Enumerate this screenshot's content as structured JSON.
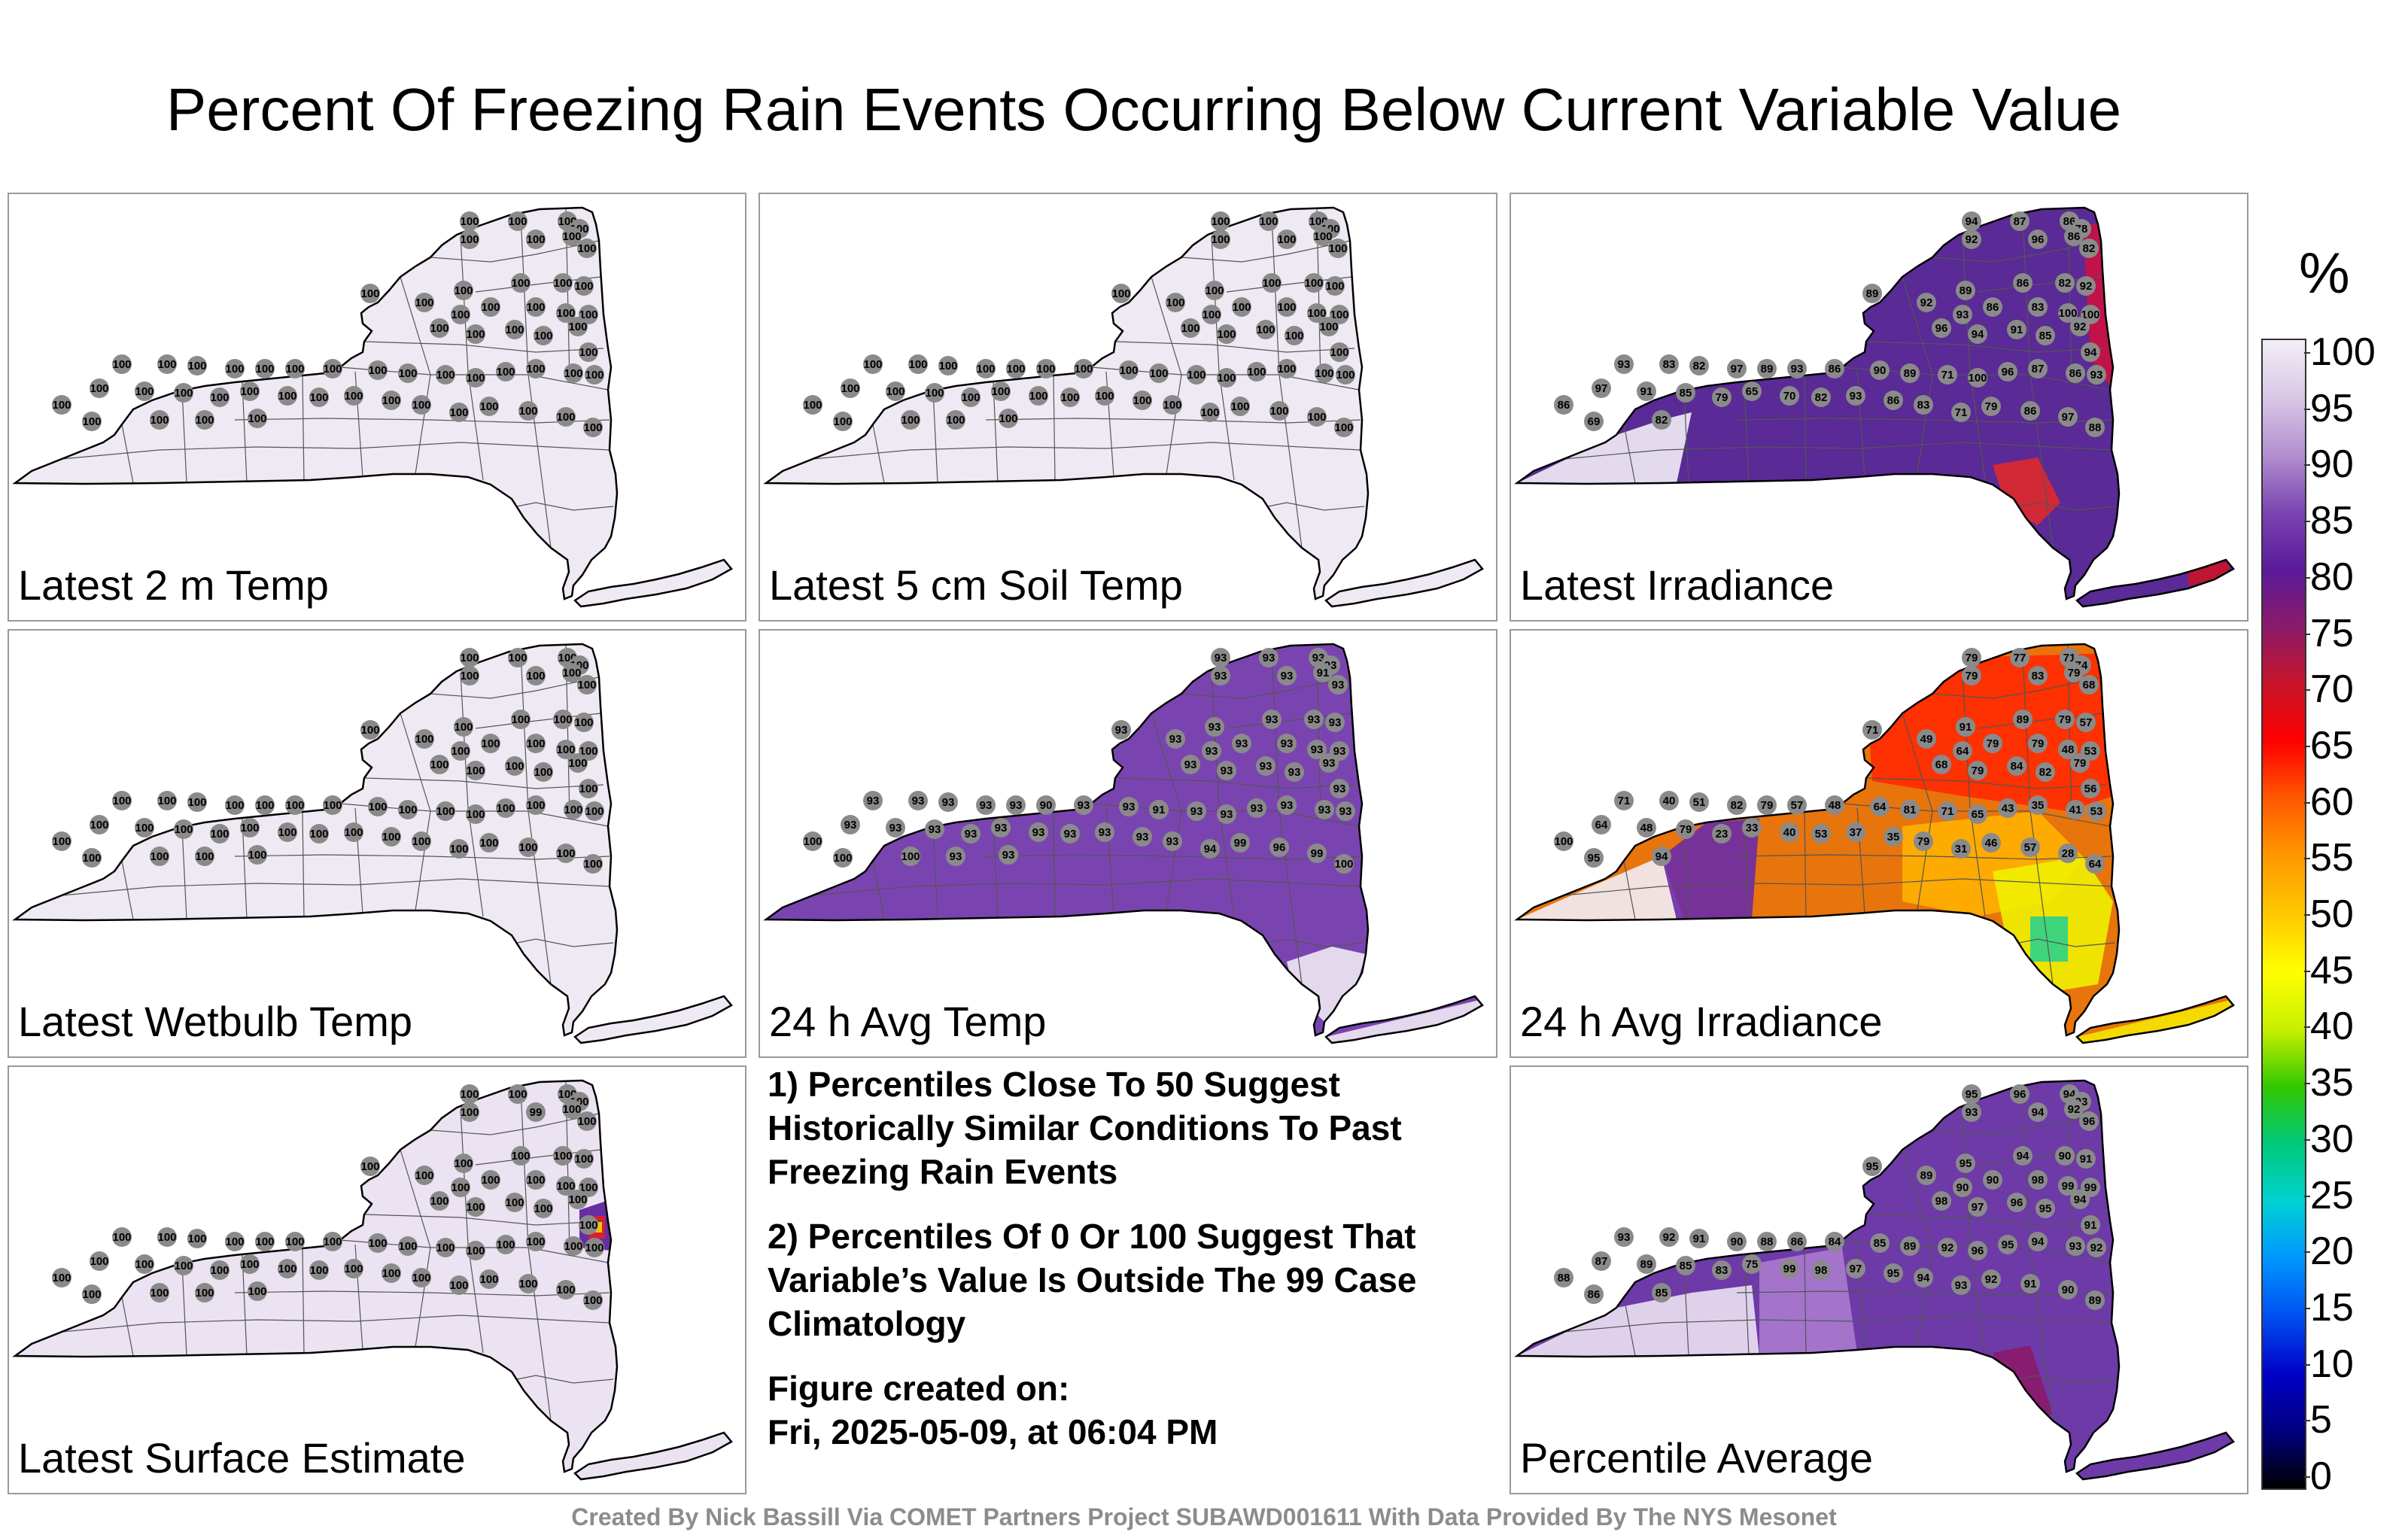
{
  "title": "Percent Of Freezing Rain Events Occurring Below Current Variable Value",
  "panels": [
    {
      "label": "Latest 2 m Temp",
      "fill": "#efe9f4",
      "markers": [
        "100",
        "100",
        "100",
        "100",
        "100",
        "100",
        "100",
        "100",
        "100",
        "100",
        "100",
        "100",
        "100",
        "100",
        "100",
        "100",
        "100",
        "100",
        "100",
        "100",
        "100",
        "100",
        "100",
        "100",
        "100",
        "100",
        "100",
        "100",
        "100",
        "100",
        "100",
        "100",
        "100",
        "100",
        "100",
        "100",
        "100",
        "100",
        "100",
        "100",
        "100",
        "100",
        "100",
        "100",
        "100",
        "100",
        "100",
        "100",
        "100",
        "100",
        "100",
        "100",
        "100",
        "100",
        "100",
        "100",
        "100",
        "100",
        "100",
        "100"
      ]
    },
    {
      "label": "Latest 5 cm Soil Temp",
      "fill": "#efe9f4",
      "markers": [
        "100",
        "100",
        "100",
        "100",
        "100",
        "100",
        "100",
        "100",
        "100",
        "100",
        "100",
        "100",
        "100",
        "100",
        "100",
        "100",
        "100",
        "100",
        "100",
        "100",
        "100",
        "100",
        "100",
        "100",
        "100",
        "100",
        "100",
        "100",
        "100",
        "100",
        "100",
        "100",
        "100",
        "100",
        "100",
        "100",
        "100",
        "100",
        "100",
        "100",
        "100",
        "100",
        "100",
        "100",
        "100",
        "100",
        "100",
        "100",
        "100",
        "100",
        "100",
        "100",
        "100",
        "100",
        "100",
        "100",
        "100",
        "100",
        "100",
        "100"
      ]
    },
    {
      "label": "Latest Irradiance",
      "fill": "#5a2a96",
      "markers": [
        "94",
        "87",
        "86",
        "78",
        "92",
        "96",
        "86",
        "82",
        "89",
        "89",
        "86",
        "82",
        "92",
        "92",
        "93",
        "86",
        "83",
        "100",
        "100",
        "96",
        "94",
        "91",
        "85",
        "92",
        "93",
        "83",
        "82",
        "97",
        "89",
        "93",
        "86",
        "90",
        "89",
        "71",
        "100",
        "96",
        "87",
        "86",
        "93",
        "94",
        "97",
        "91",
        "85",
        "79",
        "65",
        "70",
        "82",
        "93",
        "86",
        "83",
        "71",
        "79",
        "86",
        "97",
        "88",
        "86",
        "69",
        "82"
      ]
    },
    {
      "label": "Latest Wetbulb Temp",
      "fill": "#efe9f4",
      "markers": [
        "100",
        "100",
        "100",
        "100",
        "100",
        "100",
        "100",
        "100",
        "100",
        "100",
        "100",
        "100",
        "100",
        "100",
        "100",
        "100",
        "100",
        "100",
        "100",
        "100",
        "100",
        "100",
        "100",
        "100",
        "100",
        "100",
        "100",
        "100",
        "100",
        "100",
        "100",
        "100",
        "100",
        "100",
        "100",
        "100",
        "100",
        "100",
        "100",
        "100",
        "100",
        "100",
        "100",
        "100",
        "100",
        "100",
        "100",
        "100",
        "100",
        "100",
        "100",
        "100",
        "100",
        "100",
        "100",
        "100",
        "100",
        "100",
        "100",
        "100"
      ]
    },
    {
      "label": "24 h Avg Temp",
      "fill": "#7a44b0",
      "markers": [
        "93",
        "93",
        "93",
        "93",
        "93",
        "93",
        "91",
        "93",
        "93",
        "93",
        "93",
        "93",
        "93",
        "93",
        "93",
        "93",
        "93",
        "93",
        "93",
        "93",
        "93",
        "93",
        "93",
        "93",
        "93",
        "93",
        "93",
        "93",
        "93",
        "90",
        "93",
        "93",
        "91",
        "93",
        "93",
        "93",
        "93",
        "93",
        "93",
        "93",
        "93",
        "93",
        "93",
        "93",
        "93",
        "93",
        "93",
        "93",
        "93",
        "93",
        "94",
        "99",
        "96",
        "99",
        "100",
        "100",
        "100",
        "100",
        "93",
        "93"
      ]
    },
    {
      "label": "24 h Avg Irradiance",
      "fill": "#e8740c",
      "markers": [
        "79",
        "77",
        "71",
        "74",
        "79",
        "83",
        "79",
        "68",
        "71",
        "91",
        "89",
        "79",
        "57",
        "49",
        "64",
        "79",
        "79",
        "48",
        "53",
        "68",
        "79",
        "84",
        "82",
        "79",
        "71",
        "40",
        "51",
        "82",
        "79",
        "57",
        "48",
        "64",
        "81",
        "71",
        "65",
        "43",
        "35",
        "41",
        "53",
        "56",
        "64",
        "48",
        "79",
        "23",
        "33",
        "40",
        "53",
        "37",
        "35",
        "79",
        "31",
        "46",
        "57",
        "28",
        "64",
        "100",
        "95",
        "94"
      ]
    },
    {
      "label": "Latest Surface Estimate",
      "fill": "#ebe2f2",
      "markers": [
        "100",
        "100",
        "100",
        "100",
        "100",
        "99",
        "100",
        "100",
        "100",
        "100",
        "100",
        "100",
        "100",
        "100",
        "100",
        "100",
        "100",
        "100",
        "100",
        "100",
        "100",
        "100",
        "100",
        "100",
        "100",
        "100",
        "100",
        "100",
        "100",
        "100",
        "100",
        "100",
        "100",
        "100",
        "100",
        "100",
        "100",
        "100",
        "100",
        "100",
        "100",
        "100",
        "100",
        "100",
        "100",
        "100",
        "100",
        "100",
        "100",
        "100",
        "100",
        "100",
        "100",
        "100",
        "100",
        "100",
        "100",
        "100",
        "100",
        "100"
      ]
    },
    {
      "label": "Percentile Average",
      "fill": "#6d3aa8",
      "markers": [
        "95",
        "96",
        "94",
        "93",
        "93",
        "94",
        "92",
        "96",
        "95",
        "95",
        "94",
        "90",
        "91",
        "89",
        "90",
        "90",
        "98",
        "99",
        "99",
        "98",
        "97",
        "96",
        "95",
        "94",
        "93",
        "92",
        "91",
        "90",
        "88",
        "86",
        "84",
        "85",
        "89",
        "92",
        "96",
        "95",
        "94",
        "93",
        "92",
        "91",
        "87",
        "89",
        "85",
        "83",
        "75",
        "99",
        "98",
        "97",
        "95",
        "94",
        "93",
        "92",
        "91",
        "90",
        "89",
        "88",
        "86",
        "85"
      ]
    }
  ],
  "notes": [
    "1) Percentiles Close To 50 Suggest Historically Similar Conditions To Past Freezing Rain Events",
    "2) Percentiles Of 0 Or 100 Suggest That Variable’s Value Is Outside The 99 Case Climatology"
  ],
  "created_label": "Figure created on:",
  "created_date": "Fri, 2025-05-09, at 06:04 PM",
  "footer": "Created By Nick Bassill Via COMET Partners Project SUBAWD001611 With Data Provided By The NYS Mesonet",
  "colorbar": {
    "unit": "%",
    "ticks": [
      "100",
      "95",
      "90",
      "85",
      "80",
      "75",
      "70",
      "65",
      "60",
      "55",
      "50",
      "45",
      "40",
      "35",
      "30",
      "25",
      "20",
      "15",
      "10",
      "5",
      "0"
    ],
    "colors": [
      "#f2eef6",
      "#d9c7e6",
      "#b38fcf",
      "#7a44b0",
      "#5a1a9a",
      "#8b1a6a",
      "#c81428",
      "#ff0000",
      "#ff5a00",
      "#ff9800",
      "#ffc800",
      "#ffff00",
      "#c8f000",
      "#32c800",
      "#00c87a",
      "#00d2d2",
      "#0096ff",
      "#0050f0",
      "#0000c8",
      "#000080",
      "#000000"
    ]
  }
}
